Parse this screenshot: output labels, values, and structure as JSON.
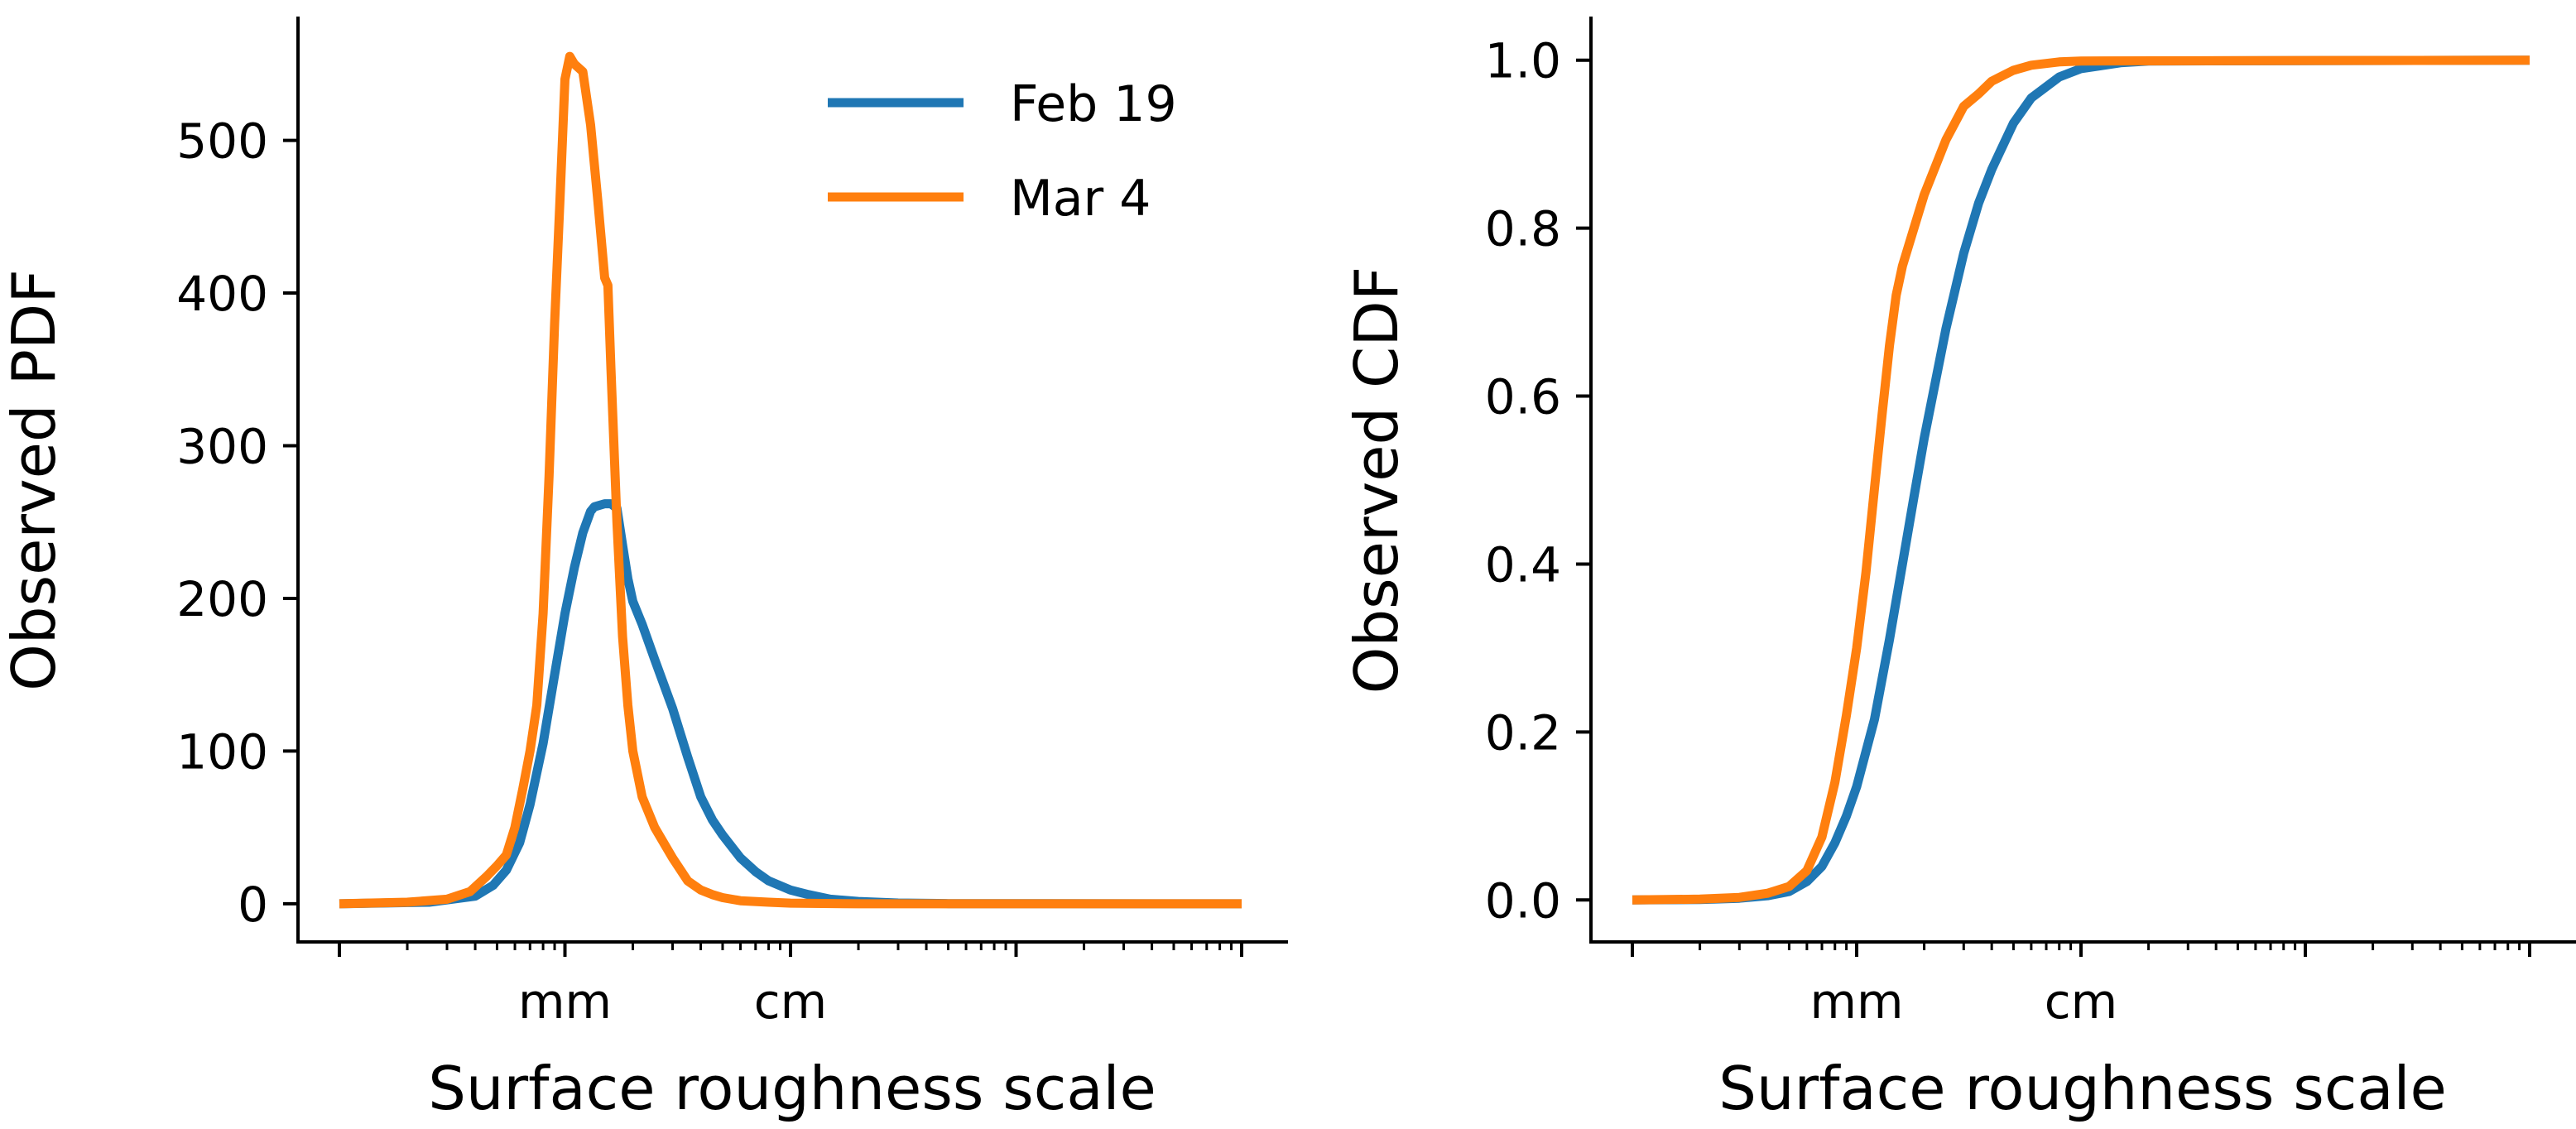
{
  "chart_data": [
    {
      "type": "line",
      "xscale": "log",
      "xlabel": "Surface roughness scale",
      "ylabel": "Observed PDF",
      "xlim": [
        0.0001,
        1
      ],
      "ylim": [
        -25,
        580
      ],
      "x_ticks": [
        {
          "x": 0.001,
          "label": "mm"
        },
        {
          "x": 0.01,
          "label": "cm"
        }
      ],
      "y_ticks": [
        {
          "y": 0,
          "label": "0"
        },
        {
          "y": 100,
          "label": "100"
        },
        {
          "y": 200,
          "label": "200"
        },
        {
          "y": 300,
          "label": "300"
        },
        {
          "y": 400,
          "label": "400"
        },
        {
          "y": 500,
          "label": "500"
        }
      ],
      "legend": {
        "placement": "top-right",
        "entries": [
          "Feb 19",
          "Mar 4"
        ]
      },
      "series": [
        {
          "name": "Feb 19",
          "color": "#1f77b4",
          "points": [
            [
              0.0001,
              0
            ],
            [
              0.00025,
              1
            ],
            [
              0.0004,
              5
            ],
            [
              0.00048,
              12
            ],
            [
              0.00055,
              22
            ],
            [
              0.00063,
              40
            ],
            [
              0.0007,
              65
            ],
            [
              0.0008,
              105
            ],
            [
              0.0009,
              150
            ],
            [
              0.001,
              190
            ],
            [
              0.0011,
              220
            ],
            [
              0.0012,
              243
            ],
            [
              0.0013,
              257
            ],
            [
              0.00135,
              260
            ],
            [
              0.0015,
              262
            ],
            [
              0.0016,
              262
            ],
            [
              0.0017,
              259
            ],
            [
              0.0018,
              235
            ],
            [
              0.0019,
              213
            ],
            [
              0.002,
              198
            ],
            [
              0.0022,
              183
            ],
            [
              0.0025,
              160
            ],
            [
              0.003,
              128
            ],
            [
              0.0035,
              96
            ],
            [
              0.004,
              70
            ],
            [
              0.0045,
              55
            ],
            [
              0.005,
              45
            ],
            [
              0.006,
              30
            ],
            [
              0.007,
              21
            ],
            [
              0.008,
              15
            ],
            [
              0.01,
              9
            ],
            [
              0.012,
              6
            ],
            [
              0.015,
              3
            ],
            [
              0.02,
              1.5
            ],
            [
              0.03,
              0.5
            ],
            [
              0.05,
              0.1
            ],
            [
              1,
              0
            ]
          ]
        },
        {
          "name": "Mar 4",
          "color": "#ff7f0e",
          "points": [
            [
              0.0001,
              0
            ],
            [
              0.0002,
              1
            ],
            [
              0.0003,
              3
            ],
            [
              0.00038,
              8
            ],
            [
              0.00045,
              18
            ],
            [
              0.0005,
              25
            ],
            [
              0.00055,
              32
            ],
            [
              0.0006,
              50
            ],
            [
              0.00065,
              75
            ],
            [
              0.0007,
              100
            ],
            [
              0.00075,
              130
            ],
            [
              0.0008,
              190
            ],
            [
              0.00085,
              280
            ],
            [
              0.0009,
              380
            ],
            [
              0.00095,
              460
            ],
            [
              0.001,
              540
            ],
            [
              0.00105,
              555
            ],
            [
              0.0011,
              550
            ],
            [
              0.0012,
              545
            ],
            [
              0.0013,
              510
            ],
            [
              0.0014,
              460
            ],
            [
              0.0015,
              410
            ],
            [
              0.00155,
              405
            ],
            [
              0.0016,
              350
            ],
            [
              0.0017,
              250
            ],
            [
              0.0018,
              175
            ],
            [
              0.0019,
              130
            ],
            [
              0.002,
              100
            ],
            [
              0.0022,
              70
            ],
            [
              0.0025,
              50
            ],
            [
              0.003,
              30
            ],
            [
              0.0035,
              15
            ],
            [
              0.004,
              9
            ],
            [
              0.0045,
              6
            ],
            [
              0.005,
              4
            ],
            [
              0.006,
              2
            ],
            [
              0.008,
              1
            ],
            [
              0.01,
              0.4
            ],
            [
              0.02,
              0
            ],
            [
              1,
              0
            ]
          ]
        }
      ]
    },
    {
      "type": "line",
      "xscale": "log",
      "xlabel": "Surface roughness scale",
      "ylabel": "Observed CDF",
      "xlim": [
        0.0001,
        1
      ],
      "ylim": [
        -0.05,
        1.05
      ],
      "x_ticks": [
        {
          "x": 0.001,
          "label": "mm"
        },
        {
          "x": 0.01,
          "label": "cm"
        }
      ],
      "y_ticks": [
        {
          "y": 0.0,
          "label": "0.0"
        },
        {
          "y": 0.2,
          "label": "0.2"
        },
        {
          "y": 0.4,
          "label": "0.4"
        },
        {
          "y": 0.6,
          "label": "0.6"
        },
        {
          "y": 0.8,
          "label": "0.8"
        },
        {
          "y": 1.0,
          "label": "1.0"
        }
      ],
      "series": [
        {
          "name": "Feb 19",
          "color": "#1f77b4",
          "points": [
            [
              0.0001,
              0
            ],
            [
              0.0002,
              0.0005
            ],
            [
              0.0003,
              0.002
            ],
            [
              0.0004,
              0.005
            ],
            [
              0.0005,
              0.01
            ],
            [
              0.0006,
              0.022
            ],
            [
              0.0007,
              0.04
            ],
            [
              0.0008,
              0.068
            ],
            [
              0.0009,
              0.1
            ],
            [
              0.001,
              0.135
            ],
            [
              0.0012,
              0.215
            ],
            [
              0.0014,
              0.31
            ],
            [
              0.0016,
              0.4
            ],
            [
              0.0018,
              0.48
            ],
            [
              0.002,
              0.55
            ],
            [
              0.0025,
              0.68
            ],
            [
              0.003,
              0.77
            ],
            [
              0.0035,
              0.83
            ],
            [
              0.004,
              0.87
            ],
            [
              0.005,
              0.925
            ],
            [
              0.006,
              0.955
            ],
            [
              0.008,
              0.98
            ],
            [
              0.01,
              0.99
            ],
            [
              0.015,
              0.997
            ],
            [
              0.02,
              0.999
            ],
            [
              1,
              1
            ]
          ]
        },
        {
          "name": "Mar 4",
          "color": "#ff7f0e",
          "points": [
            [
              0.0001,
              0
            ],
            [
              0.0002,
              0.001
            ],
            [
              0.0003,
              0.003
            ],
            [
              0.0004,
              0.008
            ],
            [
              0.0005,
              0.016
            ],
            [
              0.0006,
              0.035
            ],
            [
              0.0007,
              0.075
            ],
            [
              0.0008,
              0.14
            ],
            [
              0.0009,
              0.22
            ],
            [
              0.001,
              0.3
            ],
            [
              0.0011,
              0.39
            ],
            [
              0.0012,
              0.49
            ],
            [
              0.0013,
              0.58
            ],
            [
              0.0014,
              0.66
            ],
            [
              0.0015,
              0.72
            ],
            [
              0.0016,
              0.755
            ],
            [
              0.0018,
              0.8
            ],
            [
              0.002,
              0.84
            ],
            [
              0.0025,
              0.905
            ],
            [
              0.003,
              0.945
            ],
            [
              0.0035,
              0.96
            ],
            [
              0.004,
              0.975
            ],
            [
              0.005,
              0.988
            ],
            [
              0.006,
              0.994
            ],
            [
              0.008,
              0.998
            ],
            [
              0.01,
              0.999
            ],
            [
              1,
              1
            ]
          ]
        }
      ]
    }
  ]
}
